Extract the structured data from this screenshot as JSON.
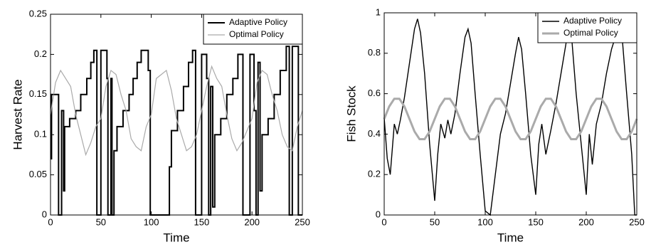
{
  "chart_data": [
    {
      "type": "line",
      "xlabel": "Time",
      "ylabel": "Harvest Rate",
      "xlim": [
        0,
        250
      ],
      "ylim": [
        0,
        0.25
      ],
      "xticks": [
        0,
        50,
        100,
        150,
        200,
        250
      ],
      "yticks": [
        0,
        0.05,
        0.1,
        0.15,
        0.2,
        0.25
      ],
      "legend": "upper right",
      "series": [
        {
          "name": "Adaptive Policy",
          "color": "#000000",
          "x": [
            0,
            1,
            1,
            8,
            8,
            11,
            11,
            13,
            13,
            14,
            14,
            19,
            19,
            25,
            25,
            30,
            30,
            36,
            36,
            40,
            40,
            43,
            43,
            46,
            46,
            50,
            50,
            56,
            56,
            57,
            57,
            60,
            60,
            61,
            61,
            63,
            63,
            66,
            66,
            72,
            72,
            78,
            78,
            82,
            82,
            86,
            86,
            90,
            90,
            97,
            97,
            99,
            99,
            118,
            118,
            120,
            120,
            126,
            126,
            132,
            132,
            137,
            137,
            141,
            141,
            144,
            144,
            150,
            150,
            155,
            155,
            157,
            157,
            159,
            159,
            161,
            161,
            163,
            163,
            169,
            169,
            175,
            175,
            181,
            181,
            186,
            186,
            191,
            191,
            198,
            198,
            202,
            202,
            204,
            204,
            206,
            206,
            208,
            208,
            210,
            210,
            216,
            216,
            222,
            222,
            228,
            228,
            234,
            234,
            237,
            237,
            240,
            240,
            246,
            246,
            250
          ],
          "values": [
            0.07,
            0.07,
            0.15,
            0.15,
            0,
            0,
            0.13,
            0.13,
            0.03,
            0.03,
            0.11,
            0.11,
            0.12,
            0.12,
            0.13,
            0.13,
            0.15,
            0.15,
            0.17,
            0.17,
            0.19,
            0.19,
            0.205,
            0.205,
            0,
            0,
            0.205,
            0.205,
            0.17,
            0.17,
            0,
            0,
            0.17,
            0.17,
            0,
            0,
            0.08,
            0.08,
            0.11,
            0.11,
            0.13,
            0.13,
            0.15,
            0.15,
            0.17,
            0.17,
            0.19,
            0.19,
            0.205,
            0.205,
            0.18,
            0.18,
            0,
            0,
            0.06,
            0.06,
            0.105,
            0.105,
            0.13,
            0.13,
            0.16,
            0.16,
            0.19,
            0.19,
            0.205,
            0.205,
            0,
            0,
            0.2,
            0.2,
            0.17,
            0.17,
            0,
            0,
            0.16,
            0.16,
            0.01,
            0.01,
            0.1,
            0.1,
            0.12,
            0.12,
            0.15,
            0.15,
            0.17,
            0.17,
            0.2,
            0.2,
            0,
            0,
            0.2,
            0.2,
            0.13,
            0.13,
            0,
            0,
            0.19,
            0.19,
            0.03,
            0.03,
            0.1,
            0.1,
            0.12,
            0.12,
            0.15,
            0.15,
            0.18,
            0.18,
            0.21,
            0.21,
            0,
            0,
            0.21,
            0.21,
            0,
            0
          ]
        },
        {
          "name": "Optimal Policy",
          "color": "#aaaaaa",
          "x": [
            0,
            5,
            10,
            15,
            20,
            25,
            30,
            35,
            40,
            45,
            50,
            55,
            60,
            65,
            70,
            75,
            80,
            85,
            90,
            95,
            100,
            105,
            110,
            115,
            120,
            125,
            130,
            135,
            140,
            145,
            150,
            155,
            160,
            165,
            170,
            175,
            180,
            185,
            190,
            195,
            200,
            205,
            210,
            215,
            220,
            225,
            230,
            235,
            240,
            245,
            250
          ],
          "values": [
            0.125,
            0.165,
            0.18,
            0.17,
            0.16,
            0.125,
            0.1,
            0.075,
            0.09,
            0.11,
            0.12,
            0.16,
            0.18,
            0.175,
            0.15,
            0.13,
            0.095,
            0.085,
            0.08,
            0.11,
            0.125,
            0.17,
            0.175,
            0.18,
            0.155,
            0.12,
            0.1,
            0.08,
            0.085,
            0.1,
            0.13,
            0.16,
            0.185,
            0.17,
            0.16,
            0.125,
            0.095,
            0.08,
            0.09,
            0.105,
            0.12,
            0.165,
            0.18,
            0.175,
            0.15,
            0.13,
            0.1,
            0.085,
            0.08,
            0.11,
            0.13
          ]
        }
      ]
    },
    {
      "type": "line",
      "xlabel": "Time",
      "ylabel": "Fish Stock",
      "xlim": [
        0,
        250
      ],
      "ylim": [
        0,
        1
      ],
      "xticks": [
        0,
        50,
        100,
        150,
        200,
        250
      ],
      "yticks": [
        0,
        0.2,
        0.4,
        0.6,
        0.8,
        1
      ],
      "legend": "upper right",
      "series": [
        {
          "name": "Adaptive Policy",
          "color": "#000000",
          "x": [
            0,
            3,
            6,
            10,
            13,
            16,
            20,
            25,
            30,
            33,
            36,
            40,
            45,
            50,
            53,
            56,
            60,
            63,
            66,
            70,
            75,
            80,
            83,
            86,
            90,
            95,
            100,
            105,
            110,
            115,
            120,
            125,
            130,
            133,
            136,
            140,
            145,
            150,
            153,
            156,
            160,
            165,
            170,
            175,
            180,
            183,
            186,
            190,
            195,
            200,
            203,
            206,
            210,
            215,
            220,
            225,
            230,
            233,
            236,
            240,
            245,
            248,
            250
          ],
          "values": [
            0.48,
            0.28,
            0.2,
            0.45,
            0.4,
            0.47,
            0.58,
            0.75,
            0.92,
            0.97,
            0.9,
            0.7,
            0.35,
            0.07,
            0.3,
            0.45,
            0.38,
            0.47,
            0.4,
            0.5,
            0.7,
            0.88,
            0.92,
            0.85,
            0.6,
            0.3,
            0.02,
            0,
            0.2,
            0.4,
            0.5,
            0.65,
            0.8,
            0.88,
            0.82,
            0.6,
            0.3,
            0.1,
            0.35,
            0.45,
            0.3,
            0.42,
            0.55,
            0.7,
            0.85,
            0.9,
            0.85,
            0.6,
            0.35,
            0.1,
            0.4,
            0.25,
            0.45,
            0.55,
            0.7,
            0.82,
            0.9,
            0.95,
            0.85,
            0.6,
            0.3,
            0,
            0
          ]
        },
        {
          "name": "Optimal Policy",
          "color": "#aaaaaa",
          "x": [
            0,
            5,
            10,
            15,
            20,
            25,
            30,
            35,
            40,
            45,
            50,
            55,
            60,
            65,
            70,
            75,
            80,
            85,
            90,
            95,
            100,
            105,
            110,
            115,
            120,
            125,
            130,
            135,
            140,
            145,
            150,
            155,
            160,
            165,
            170,
            175,
            180,
            185,
            190,
            195,
            200,
            205,
            210,
            215,
            220,
            225,
            230,
            235,
            240,
            245,
            250
          ],
          "values": [
            0.475,
            0.537,
            0.575,
            0.575,
            0.537,
            0.475,
            0.413,
            0.375,
            0.375,
            0.413,
            0.475,
            0.537,
            0.575,
            0.575,
            0.537,
            0.475,
            0.413,
            0.375,
            0.375,
            0.413,
            0.475,
            0.537,
            0.575,
            0.575,
            0.537,
            0.475,
            0.413,
            0.375,
            0.375,
            0.413,
            0.475,
            0.537,
            0.575,
            0.575,
            0.537,
            0.475,
            0.413,
            0.375,
            0.375,
            0.413,
            0.475,
            0.537,
            0.575,
            0.575,
            0.537,
            0.475,
            0.413,
            0.375,
            0.375,
            0.413,
            0.475
          ]
        }
      ]
    }
  ]
}
